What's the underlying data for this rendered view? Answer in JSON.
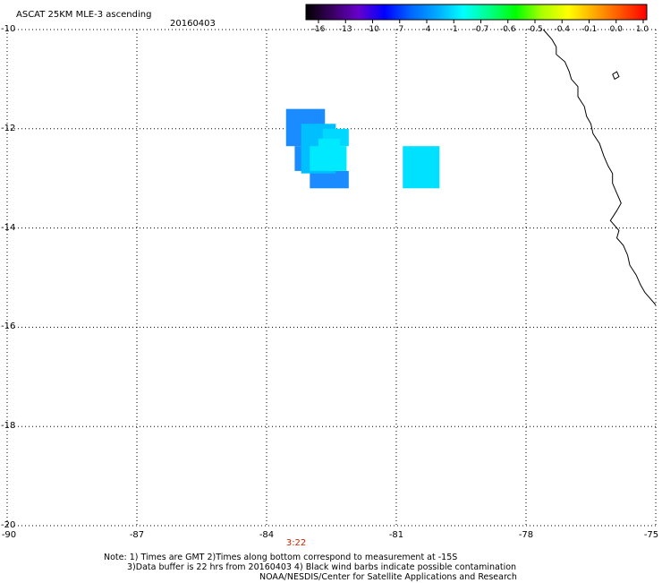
{
  "header": {
    "title": "ASCAT 25KM MLE-3 ascending",
    "date": "20160403"
  },
  "colorbar": {
    "tick_labels": [
      "-16",
      "-13",
      "-10",
      "-7",
      "-4",
      "-1",
      "-0.7",
      "-0.6",
      "-0.5",
      "-0.4",
      "-0.1",
      "0.0",
      "1.0"
    ],
    "gradient_colors": [
      "#000000",
      "#3a0060",
      "#6600cc",
      "#0000ff",
      "#0066ff",
      "#00aaff",
      "#00ffff",
      "#00ff88",
      "#00ff00",
      "#aaff00",
      "#ffff00",
      "#ffaa00",
      "#ff5500",
      "#ff0000"
    ]
  },
  "axes": {
    "lat_labels": [
      "-10",
      "-12",
      "-14",
      "-16",
      "-18",
      "-20"
    ],
    "lon_labels": [
      "-90",
      "-87",
      "-84",
      "-81",
      "-78",
      "-75"
    ],
    "lat_values": [
      -10,
      -12,
      -14,
      -16,
      -18,
      -20
    ],
    "lon_values": [
      -90,
      -87,
      -84,
      -81,
      -78,
      -75
    ],
    "grid": "dotted",
    "lon_range": [
      -90,
      -75
    ],
    "lat_range": [
      -20,
      -10
    ]
  },
  "time_marker": {
    "label": "3:22",
    "lon": -83.3,
    "color": "#cc2200"
  },
  "mle_cells": [
    {
      "lon": [
        -83.55,
        -82.65
      ],
      "lat": [
        -11.6,
        -12.35
      ],
      "color": "#1a8cff"
    },
    {
      "lon": [
        -83.35,
        -82.5
      ],
      "lat": [
        -12.35,
        -12.85
      ],
      "color": "#1a8cff"
    },
    {
      "lon": [
        -83.0,
        -82.1
      ],
      "lat": [
        -12.85,
        -13.2
      ],
      "color": "#1a8cff"
    },
    {
      "lon": [
        -83.2,
        -82.4
      ],
      "lat": [
        -11.9,
        -12.9
      ],
      "color": "#00bfff"
    },
    {
      "lon": [
        -82.7,
        -82.1
      ],
      "lat": [
        -12.0,
        -12.35
      ],
      "color": "#00d8ff"
    },
    {
      "lon": [
        -83.0,
        -82.15
      ],
      "lat": [
        -12.35,
        -12.85
      ],
      "color": "#00eaff"
    },
    {
      "lon": [
        -82.8,
        -82.3
      ],
      "lat": [
        -12.2,
        -12.45
      ],
      "color": "#00eaff"
    },
    {
      "lon": [
        -80.85,
        -80.0
      ],
      "lat": [
        -12.35,
        -13.2
      ],
      "color": "#00e0ff"
    }
  ],
  "coastline": [
    [
      -77.6,
      -10.0
    ],
    [
      -77.4,
      -10.2
    ],
    [
      -77.3,
      -10.35
    ],
    [
      -77.3,
      -10.5
    ],
    [
      -77.1,
      -10.65
    ],
    [
      -77.0,
      -10.85
    ],
    [
      -76.95,
      -11.0
    ],
    [
      -76.8,
      -11.15
    ],
    [
      -76.8,
      -11.35
    ],
    [
      -76.65,
      -11.55
    ],
    [
      -76.6,
      -11.75
    ],
    [
      -76.5,
      -11.9
    ],
    [
      -76.45,
      -12.1
    ],
    [
      -76.3,
      -12.3
    ],
    [
      -76.2,
      -12.55
    ],
    [
      -76.1,
      -12.75
    ],
    [
      -76.0,
      -12.9
    ],
    [
      -76.0,
      -13.1
    ],
    [
      -75.9,
      -13.3
    ],
    [
      -75.8,
      -13.5
    ],
    [
      -75.9,
      -13.65
    ],
    [
      -76.05,
      -13.85
    ],
    [
      -75.95,
      -13.95
    ],
    [
      -75.85,
      -14.05
    ],
    [
      -75.9,
      -14.2
    ],
    [
      -75.75,
      -14.35
    ],
    [
      -75.65,
      -14.55
    ],
    [
      -75.6,
      -14.75
    ],
    [
      -75.45,
      -14.95
    ],
    [
      -75.35,
      -15.15
    ],
    [
      -75.25,
      -15.3
    ],
    [
      -75.1,
      -15.45
    ],
    [
      -75.0,
      -15.55
    ]
  ],
  "island": [
    [
      -76.0,
      -10.9
    ],
    [
      -75.9,
      -10.85
    ],
    [
      -75.85,
      -10.95
    ],
    [
      -75.95,
      -11.0
    ],
    [
      -76.0,
      -10.9
    ]
  ],
  "notes": {
    "line1": "Note: 1) Times are GMT 2)Times along bottom correspond to measurement at -15S",
    "line2": "3)Data buffer is 22 hrs from 20160403 4) Black wind barbs indicate possible contamination",
    "line3": "NOAA/NESDIS/Center for Satellite Applications and Research"
  }
}
